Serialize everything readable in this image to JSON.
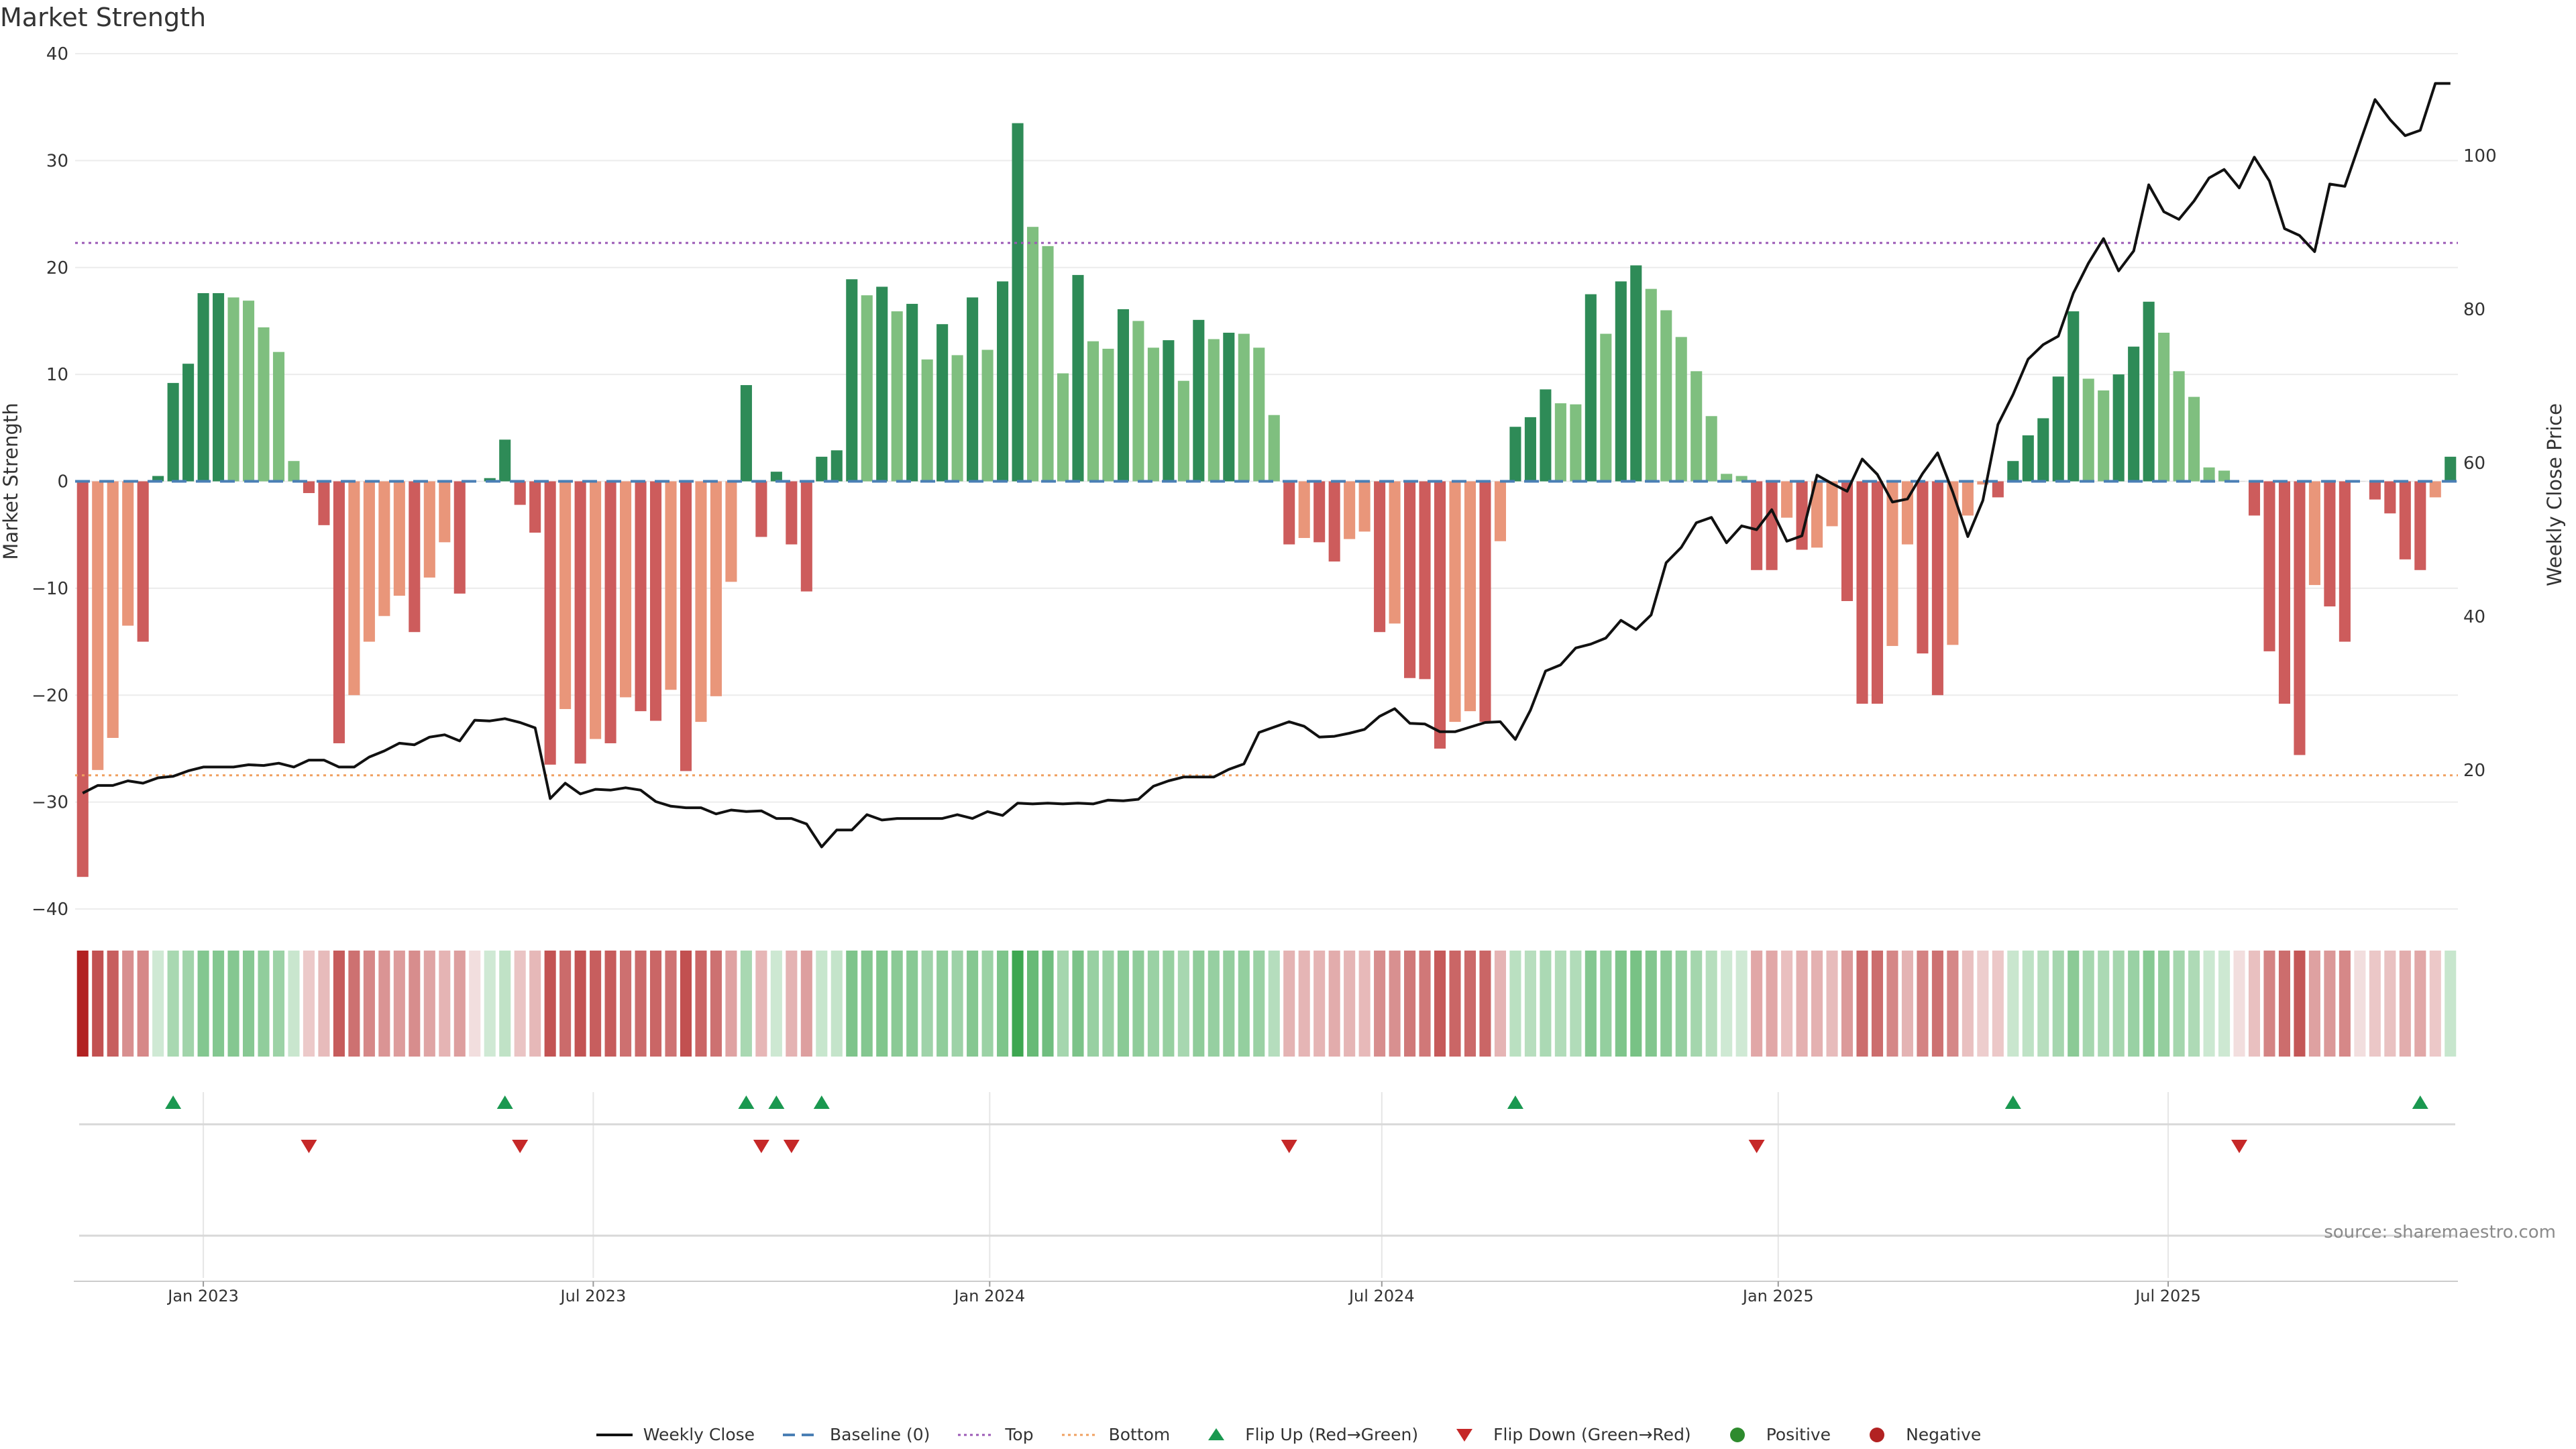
{
  "title": "Market Strength",
  "source": "source: sharemaestro.com",
  "colors": {
    "pos_dark": "#2e8b57",
    "pos_light": "#7fbf7f",
    "neg_dark": "#cd5c5c",
    "neg_light": "#e9967a",
    "price_line": "#111111",
    "baseline": "#4a7fb5",
    "top_line": "#9b59b6",
    "bottom_line": "#f0a060",
    "flip_up": "#1a9850",
    "flip_down": "#c62828"
  },
  "legend": [
    {
      "label": "Weekly Close",
      "icon": "solid-line",
      "color": "#111111"
    },
    {
      "label": "Baseline (0)",
      "icon": "dashed-line",
      "color": "#4a7fb5"
    },
    {
      "label": "Top",
      "icon": "dotted-line",
      "color": "#9b59b6"
    },
    {
      "label": "Bottom",
      "icon": "dotted-line",
      "color": "#f0a060"
    },
    {
      "label": "Flip Up (Red→Green)",
      "icon": "triangle-up",
      "color": "#1a9850"
    },
    {
      "label": "Flip Down (Green→Red)",
      "icon": "triangle-down",
      "color": "#c62828"
    },
    {
      "label": "Positive",
      "icon": "circle",
      "color": "#2e8b2e"
    },
    {
      "label": "Negative",
      "icon": "circle",
      "color": "#b22222"
    }
  ],
  "chart_data": {
    "type": "bar",
    "title": "Market Strength",
    "ylabel": "Market Strength",
    "y2label": "Weekly Close Price",
    "ylim": [
      -40,
      40
    ],
    "y2lim": [
      0,
      112
    ],
    "yticks": [
      -40,
      -30,
      -20,
      -10,
      0,
      10,
      20,
      30,
      40
    ],
    "y2ticks": [
      20,
      40,
      60,
      80,
      100
    ],
    "x_start": "2022-11-06",
    "x_step_days": 7,
    "x_end": "2025-11-30",
    "xticks": [
      {
        "date": "2023-01-01",
        "label": "Jan 2023"
      },
      {
        "date": "2023-07-01",
        "label": "Jul 2023"
      },
      {
        "date": "2024-01-01",
        "label": "Jan 2024"
      },
      {
        "date": "2024-07-01",
        "label": "Jul 2024"
      },
      {
        "date": "2025-01-01",
        "label": "Jan 2025"
      },
      {
        "date": "2025-07-01",
        "label": "Jul 2025"
      }
    ],
    "top": 22.3,
    "bottom": -27.5,
    "baseline": 0,
    "strength": [
      -37,
      -27,
      -24,
      -13.5,
      -15,
      0.5,
      9.2,
      11,
      17.6,
      17.6,
      17.2,
      16.9,
      14.4,
      12.1,
      1.9,
      -1.1,
      -4.1,
      -24.5,
      -20,
      -15,
      -12.6,
      -10.7,
      -14.1,
      -9,
      -5.7,
      -10.5,
      0,
      0.3,
      3.9,
      -2.2,
      -4.8,
      -26.5,
      -21.3,
      -26.4,
      -24.1,
      -24.5,
      -20.2,
      -21.5,
      -22.4,
      -19.5,
      -27.1,
      -22.5,
      -20.1,
      -9.4,
      9,
      -5.2,
      0.9,
      -5.9,
      -10.3,
      2.3,
      2.9,
      18.9,
      17.4,
      18.2,
      15.9,
      16.6,
      11.4,
      14.7,
      11.8,
      17.2,
      12.3,
      18.7,
      33.5,
      23.8,
      22,
      10.1,
      19.3,
      13.1,
      12.4,
      16.1,
      15,
      12.5,
      13.2,
      9.4,
      15.1,
      13.3,
      13.9,
      13.8,
      12.5,
      6.2,
      -5.9,
      -5.3,
      -5.7,
      -7.5,
      -5.4,
      -4.7,
      -14.1,
      -13.3,
      -18.4,
      -18.5,
      -25,
      -22.5,
      -21.5,
      -22.5,
      -5.6,
      5.1,
      6,
      8.6,
      7.3,
      7.2,
      17.5,
      13.8,
      18.7,
      20.2,
      18,
      16,
      13.5,
      10.3,
      6.1,
      0.7,
      0.5,
      -8.3,
      -8.3,
      -3.4,
      -6.4,
      -6.2,
      -4.2,
      -11.2,
      -20.8,
      -20.8,
      -15.4,
      -5.9,
      -16.1,
      -20,
      -15.3,
      -3.2,
      -0.3,
      -1.5,
      1.9,
      4.3,
      5.9,
      9.8,
      15.9,
      9.6,
      8.5,
      10,
      12.6,
      16.8,
      13.9,
      10.3,
      7.9,
      1.3,
      1,
      0,
      -3.2,
      -15.9,
      -20.8,
      -25.6,
      -9.7,
      -11.7,
      -15,
      0,
      -1.7,
      -3,
      -7.3,
      -8.3,
      -1.5,
      2.3
    ],
    "price": [
      17,
      18,
      18,
      18.6,
      18.3,
      19,
      19.2,
      19.9,
      20.4,
      20.4,
      20.4,
      20.7,
      20.6,
      20.9,
      20.4,
      21.3,
      21.3,
      20.4,
      20.4,
      21.7,
      22.5,
      23.5,
      23.3,
      24.3,
      24.6,
      23.8,
      26.5,
      26.4,
      26.7,
      26.2,
      25.5,
      16.3,
      18.3,
      16.9,
      17.5,
      17.4,
      17.7,
      17.4,
      15.9,
      15.3,
      15.1,
      15.1,
      14.3,
      14.8,
      14.6,
      14.7,
      13.7,
      13.7,
      13,
      10,
      12.2,
      12.2,
      14.2,
      13.5,
      13.7,
      13.7,
      13.7,
      13.7,
      14.2,
      13.7,
      14.6,
      14.1,
      15.7,
      15.6,
      15.7,
      15.6,
      15.7,
      15.6,
      16.1,
      16,
      16.2,
      17.9,
      18.6,
      19.1,
      19.1,
      19.1,
      20.1,
      20.8,
      24.9,
      25.6,
      26.3,
      25.7,
      24.3,
      24.4,
      24.8,
      25.3,
      27,
      28,
      26.1,
      26,
      25,
      25,
      25.6,
      26.2,
      26.3,
      24,
      27.8,
      32.9,
      33.7,
      35.9,
      36.4,
      37.2,
      39.5,
      38.3,
      40.2,
      47,
      49,
      52.2,
      52.9,
      49.6,
      51.8,
      51.3,
      53.9,
      49.8,
      50.5,
      58.4,
      57.3,
      56.3,
      60.5,
      58.5,
      54.9,
      55.3,
      58.6,
      61.3,
      56.2,
      50.4,
      55.1,
      65,
      68.9,
      73.5,
      75.4,
      76.5,
      82.1,
      86,
      89.2,
      85,
      87.6,
      96.2,
      92.7,
      91.7,
      94.1,
      97.1,
      98.2,
      95.8,
      99.8,
      96.7,
      90.5,
      89.6,
      87.5,
      96.3,
      96,
      101.7,
      107.3,
      104.7,
      102.6,
      103.3,
      109.4,
      109.4
    ],
    "flip_up_weeks": [
      6,
      28,
      44,
      46,
      49,
      95,
      128,
      155
    ],
    "flip_down_weeks": [
      15,
      29,
      45,
      47,
      80,
      111,
      143
    ]
  }
}
